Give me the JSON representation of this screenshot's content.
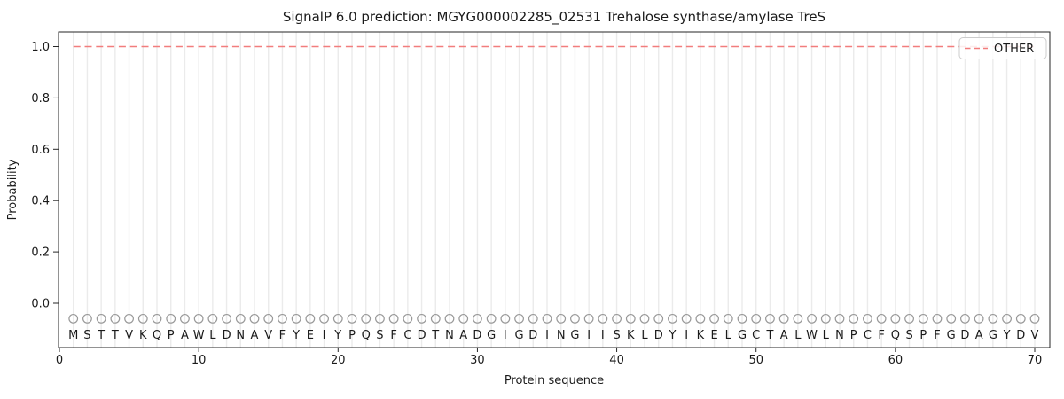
{
  "colors": {
    "line": "#f27d7d",
    "grid": "#ebebeb",
    "marker": "#999999",
    "letter": "#1a1a1a",
    "axis": "#262626",
    "tick_label": "#1a1a1a",
    "legend_border": "#cccccc",
    "legend_bg": "#ffffff",
    "background": "#ffffff"
  },
  "chart_data": {
    "type": "line",
    "title": "SignalP 6.0 prediction: MGYG000002285_02531 Trehalose synthase/amylase TreS",
    "xlabel": "Protein sequence",
    "ylabel": "Probability",
    "xlim": [
      0,
      71.1
    ],
    "ylim": [
      -0.17,
      1.06
    ],
    "x_ticks": [
      0,
      10,
      20,
      30,
      40,
      50,
      60,
      70
    ],
    "x_tick_labels": [
      "0",
      "10",
      "20",
      "30",
      "40",
      "50",
      "60",
      "70"
    ],
    "y_ticks": [
      0.0,
      0.2,
      0.4,
      0.6,
      0.8,
      1.0
    ],
    "y_tick_labels": [
      "0.0",
      "0.2",
      "0.4",
      "0.6",
      "0.8",
      "1.0"
    ],
    "grid": "vertical-line-at-every-residue",
    "legend": {
      "position": "upper-right",
      "entries": [
        {
          "label": "OTHER",
          "color": "#f27d7d",
          "style": "dashed"
        }
      ]
    },
    "sequence": "MSTTVKQPAWLDNAVFYEIYPQSFCDTNADGIGDINGIISKLDYIKELGCTALWLNPCFQSPFGDAGYDV",
    "series": [
      {
        "name": "OTHER",
        "style": "dashed",
        "color": "#f27d7d",
        "x_start": 1,
        "x_end": 70,
        "values": [
          1.0,
          1.0,
          1.0,
          1.0,
          1.0,
          1.0,
          1.0,
          1.0,
          1.0,
          1.0,
          1.0,
          1.0,
          1.0,
          1.0,
          1.0,
          1.0,
          1.0,
          1.0,
          1.0,
          1.0,
          1.0,
          1.0,
          1.0,
          1.0,
          1.0,
          1.0,
          1.0,
          1.0,
          1.0,
          1.0,
          1.0,
          1.0,
          1.0,
          1.0,
          1.0,
          1.0,
          1.0,
          1.0,
          1.0,
          1.0,
          1.0,
          1.0,
          1.0,
          1.0,
          1.0,
          1.0,
          1.0,
          1.0,
          1.0,
          1.0,
          1.0,
          1.0,
          1.0,
          1.0,
          1.0,
          1.0,
          1.0,
          1.0,
          1.0,
          1.0,
          1.0,
          1.0,
          1.0,
          1.0,
          1.0,
          1.0,
          1.0,
          1.0,
          1.0,
          1.0
        ]
      }
    ],
    "residue_markers": {
      "symbol": "open-circle",
      "y": -0.06,
      "color": "#999999"
    }
  }
}
